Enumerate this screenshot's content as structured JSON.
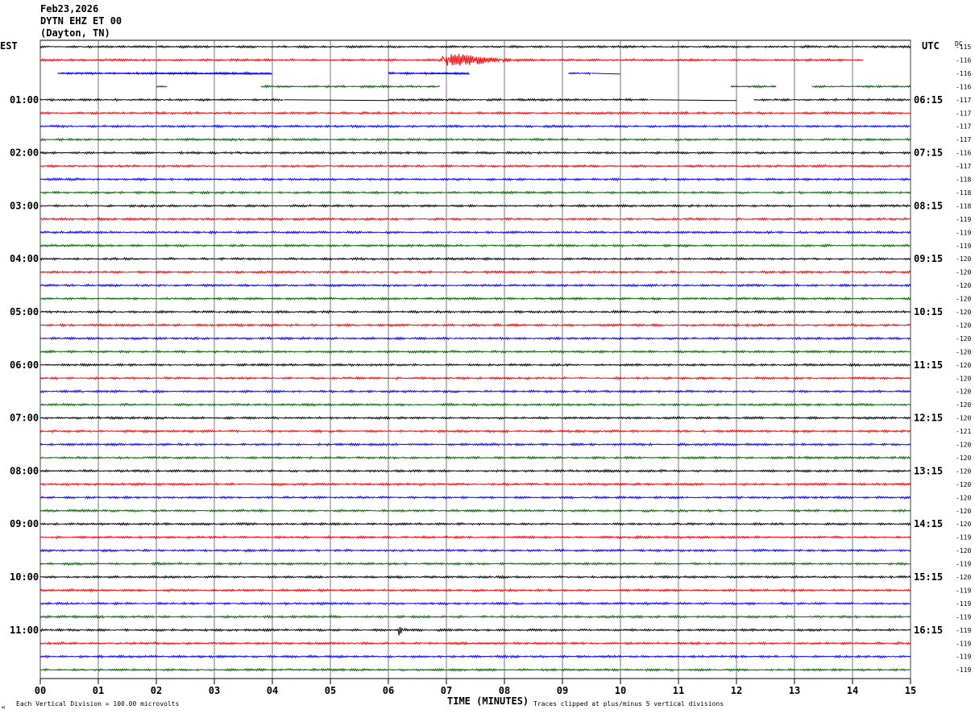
{
  "header": {
    "date": "Feb23,2026",
    "station": "DYTN EHZ ET 00",
    "location": "(Dayton, TN)"
  },
  "left_timezone": "EST",
  "right_timezone": "UTC",
  "dc_label": "DC",
  "footer": {
    "scale_text": "Each Vertical Division =  100.00 microvolts",
    "axis_title": "TIME (MINUTES)",
    "clip_text": "Traces clipped at plus/minus 5 vertical divisions"
  },
  "colors": {
    "trace_cycle": [
      "#000000",
      "#ff0000",
      "#0000ff",
      "#006400"
    ],
    "grid": "#000000",
    "background": "#ffffff"
  },
  "chart_data": {
    "type": "helicorder",
    "x_axis": {
      "label": "TIME (MINUTES)",
      "range": [
        0,
        15
      ],
      "ticks": [
        "00",
        "01",
        "02",
        "03",
        "04",
        "05",
        "06",
        "07",
        "08",
        "09",
        "10",
        "11",
        "12",
        "13",
        "14",
        "15"
      ]
    },
    "traces_per_hour": 4,
    "minutes_per_trace": 15,
    "est_hour_labels": [
      "01:00",
      "02:00",
      "03:00",
      "04:00",
      "05:00",
      "06:00",
      "07:00",
      "08:00",
      "09:00",
      "10:00",
      "11:00"
    ],
    "utc_hour_labels": [
      "06:15",
      "07:15",
      "08:15",
      "09:15",
      "10:15",
      "11:15",
      "12:15",
      "13:15",
      "14:15",
      "15:15",
      "16:15"
    ],
    "dc_offsets": [
      "-115",
      "-116",
      "-116",
      "-116",
      "-117",
      "-117",
      "-117",
      "-117",
      "-116",
      "-117",
      "-118",
      "-118",
      "-118",
      "-119",
      "-119",
      "-119",
      "-120",
      "-120",
      "-120",
      "-120",
      "-120",
      "-120",
      "-120",
      "-120",
      "-120",
      "-120",
      "-120",
      "-120",
      "-120",
      "-121",
      "-120",
      "-120",
      "-120",
      "-120",
      "-120",
      "-120",
      "-120",
      "-119",
      "-120",
      "-119",
      "-120",
      "-119",
      "-119",
      "-119",
      "-119",
      "-119",
      "-119",
      "-119"
    ],
    "gaps": [
      {
        "row": 2,
        "minutes": [
          [
            0,
            0.3
          ],
          [
            4.0,
            6.0
          ],
          [
            7.4,
            9.1
          ],
          [
            9.5,
            10.0
          ],
          [
            10.0,
            15.0
          ]
        ]
      },
      {
        "row": 3,
        "minutes": [
          [
            0,
            2.0
          ],
          [
            2.2,
            3.8
          ],
          [
            6.9,
            11.9
          ],
          [
            12.7,
            13.3
          ]
        ]
      },
      {
        "row": 4,
        "minutes": [
          [
            4.2,
            6.0
          ],
          [
            10.5,
            12.3
          ]
        ]
      },
      {
        "row": 1,
        "minutes": [
          [
            14.2,
            15.0
          ]
        ]
      }
    ],
    "events": [
      {
        "row": 1,
        "start_minute": 6.92,
        "duration_minutes": 2.4,
        "peak_amplitude_divisions": 5
      },
      {
        "row": 44,
        "start_minute": 6.18,
        "duration_minutes": 0.6,
        "peak_amplitude_divisions": 3
      }
    ],
    "background_noise_divisions": 0.4
  }
}
